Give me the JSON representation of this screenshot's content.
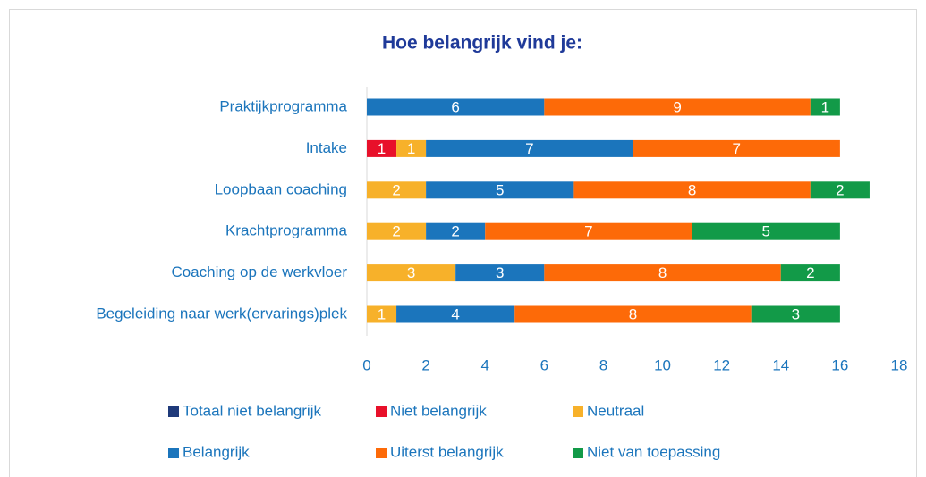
{
  "chart_data": {
    "type": "stacked-barh",
    "title": "Hoe belangrijk vind je:",
    "categories": [
      "Praktijkprogramma",
      "Intake",
      "Loopbaan coaching",
      "Krachtprogramma",
      "Coaching op de werkvloer",
      "Begeleiding naar werk(ervarings)plek"
    ],
    "series": [
      {
        "name": "Totaal niet belangrijk",
        "color": "#1f3a7a",
        "values": [
          0,
          0,
          0,
          0,
          0,
          0
        ]
      },
      {
        "name": "Niet belangrijk",
        "color": "#e8102a",
        "values": [
          0,
          1,
          0,
          0,
          0,
          0
        ]
      },
      {
        "name": "Neutraal",
        "color": "#f7b12a",
        "values": [
          0,
          1,
          2,
          2,
          3,
          1
        ]
      },
      {
        "name": "Belangrijk",
        "color": "#1b75bc",
        "values": [
          6,
          7,
          5,
          2,
          3,
          4
        ]
      },
      {
        "name": "Uiterst belangrijk",
        "color": "#fd6a08",
        "values": [
          9,
          7,
          8,
          7,
          8,
          8
        ]
      },
      {
        "name": "Niet van toepassing",
        "color": "#129a48",
        "values": [
          1,
          0,
          2,
          5,
          2,
          3
        ]
      }
    ],
    "xlim": [
      0,
      18
    ],
    "xticks": [
      0,
      2,
      4,
      6,
      8,
      10,
      12,
      14,
      16,
      18
    ],
    "grid": false
  }
}
